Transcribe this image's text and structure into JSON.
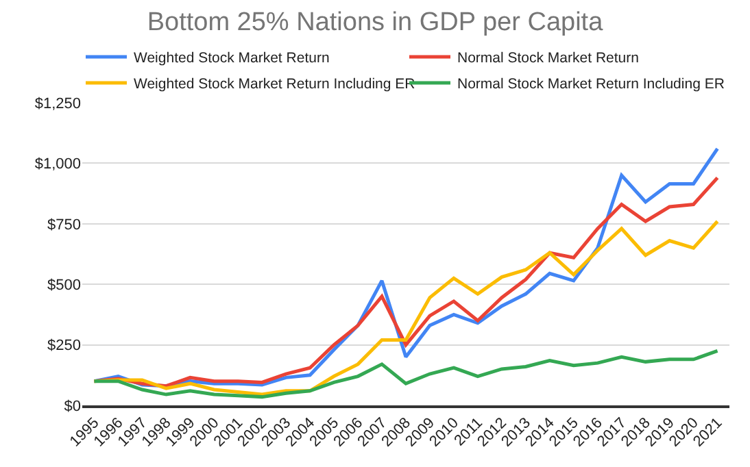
{
  "chart_data": {
    "type": "line",
    "title": "Bottom 25% Nations in GDP per Capita",
    "categories": [
      "1995",
      "1996",
      "1997",
      "1998",
      "1999",
      "2000",
      "2001",
      "2002",
      "2003",
      "2004",
      "2005",
      "2006",
      "2007",
      "2008",
      "2009",
      "2010",
      "2011",
      "2012",
      "2013",
      "2014",
      "2015",
      "2016",
      "2017",
      "2018",
      "2019",
      "2020",
      "2021"
    ],
    "series": [
      {
        "name": "Weighted Stock Market Return",
        "color": "#4285f4",
        "values": [
          100,
          120,
          85,
          80,
          100,
          90,
          90,
          85,
          115,
          125,
          230,
          330,
          515,
          200,
          330,
          375,
          340,
          410,
          460,
          545,
          515,
          650,
          950,
          840,
          915,
          915,
          1060
        ]
      },
      {
        "name": "Normal Stock Market Return",
        "color": "#ea4335",
        "values": [
          100,
          110,
          90,
          80,
          115,
          100,
          100,
          95,
          130,
          155,
          250,
          330,
          450,
          250,
          370,
          430,
          350,
          445,
          520,
          630,
          610,
          730,
          830,
          760,
          820,
          830,
          940
        ]
      },
      {
        "name": "Weighted Stock Market Return Including ER",
        "color": "#fbbc04",
        "values": [
          100,
          105,
          105,
          70,
          90,
          65,
          55,
          45,
          60,
          60,
          120,
          170,
          270,
          270,
          445,
          525,
          460,
          530,
          560,
          630,
          540,
          640,
          730,
          620,
          680,
          650,
          760
        ]
      },
      {
        "name": "Normal Stock Market Return Including ER",
        "color": "#34a853",
        "values": [
          100,
          100,
          65,
          45,
          60,
          45,
          40,
          35,
          50,
          60,
          95,
          120,
          170,
          90,
          130,
          155,
          120,
          150,
          160,
          185,
          165,
          175,
          200,
          180,
          190,
          190,
          225
        ]
      }
    ],
    "ylim": [
      0,
      1250
    ],
    "yticks": [
      {
        "value": 0,
        "label": "$0"
      },
      {
        "value": 250,
        "label": "$250"
      },
      {
        "value": 500,
        "label": "$500"
      },
      {
        "value": 750,
        "label": "$750"
      },
      {
        "value": 1000,
        "label": "$1,000"
      },
      {
        "value": 1250,
        "label": "$1,250"
      }
    ],
    "grid": "y",
    "legend": "top",
    "marker": "none",
    "line_style": "solid"
  }
}
